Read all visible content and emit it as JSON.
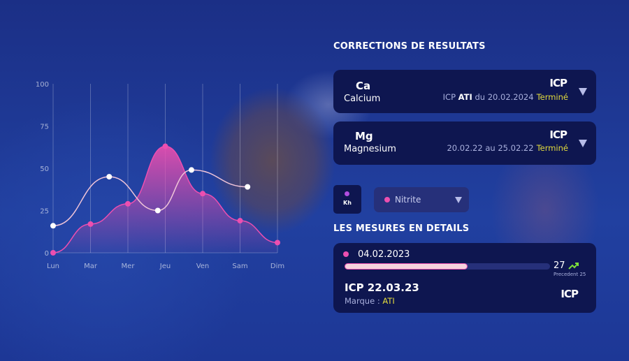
{
  "corrections": {
    "title": "CORRECTIONS DE RESULTATS",
    "items": [
      {
        "symbol": "Ca",
        "name": "Calcium",
        "logo": "ICP",
        "meta_prefix": "ICP",
        "meta_brand": "ATI",
        "meta_suffix": "du 20.02.2024",
        "status": "Terminé"
      },
      {
        "symbol": "Mg",
        "name": "Magnesium",
        "logo": "ICP",
        "meta_prefix": "",
        "meta_brand": "",
        "meta_suffix": "20.02.22 au 25.02.22",
        "status": "Terminé"
      }
    ]
  },
  "filters": {
    "kh_label": "Kh",
    "kh_dot_color": "#b04de0",
    "select_value": "Nitrite",
    "select_dot_color": "#ec4fb0"
  },
  "details": {
    "title": "LES MESURES EN DETAILS",
    "date": "04.02.2023",
    "progress": 0.6,
    "value": "27",
    "previous": "Precedent 25",
    "trend": "up",
    "icp_title": "ICP 22.03.23",
    "brand_label": "Marque :",
    "brand": "ATI",
    "logo": "ICP"
  },
  "colors": {
    "accent": "#e4dc3c",
    "pink": "#ec4fb0",
    "card": "#0e1650",
    "trend": "#7ee03a"
  },
  "chart_data": {
    "type": "line",
    "categories": [
      "Lun",
      "Mar",
      "Mer",
      "Jeu",
      "Ven",
      "Sam",
      "Dim"
    ],
    "yticks": [
      0,
      25,
      50,
      75,
      100
    ],
    "ylim": [
      0,
      100
    ],
    "grid": "vertical",
    "series": [
      {
        "color": "#ec4fb0",
        "fill": true,
        "points": [
          [
            0,
            0
          ],
          [
            1,
            17
          ],
          [
            2,
            29
          ],
          [
            3,
            63
          ],
          [
            4,
            35
          ],
          [
            5,
            19
          ],
          [
            6,
            6
          ]
        ]
      },
      {
        "color": "#ffffff",
        "fill": false,
        "points": [
          [
            0,
            16
          ],
          [
            1.5,
            45
          ],
          [
            2.8,
            25
          ],
          [
            3.7,
            49
          ],
          [
            5.2,
            39
          ]
        ]
      }
    ]
  }
}
